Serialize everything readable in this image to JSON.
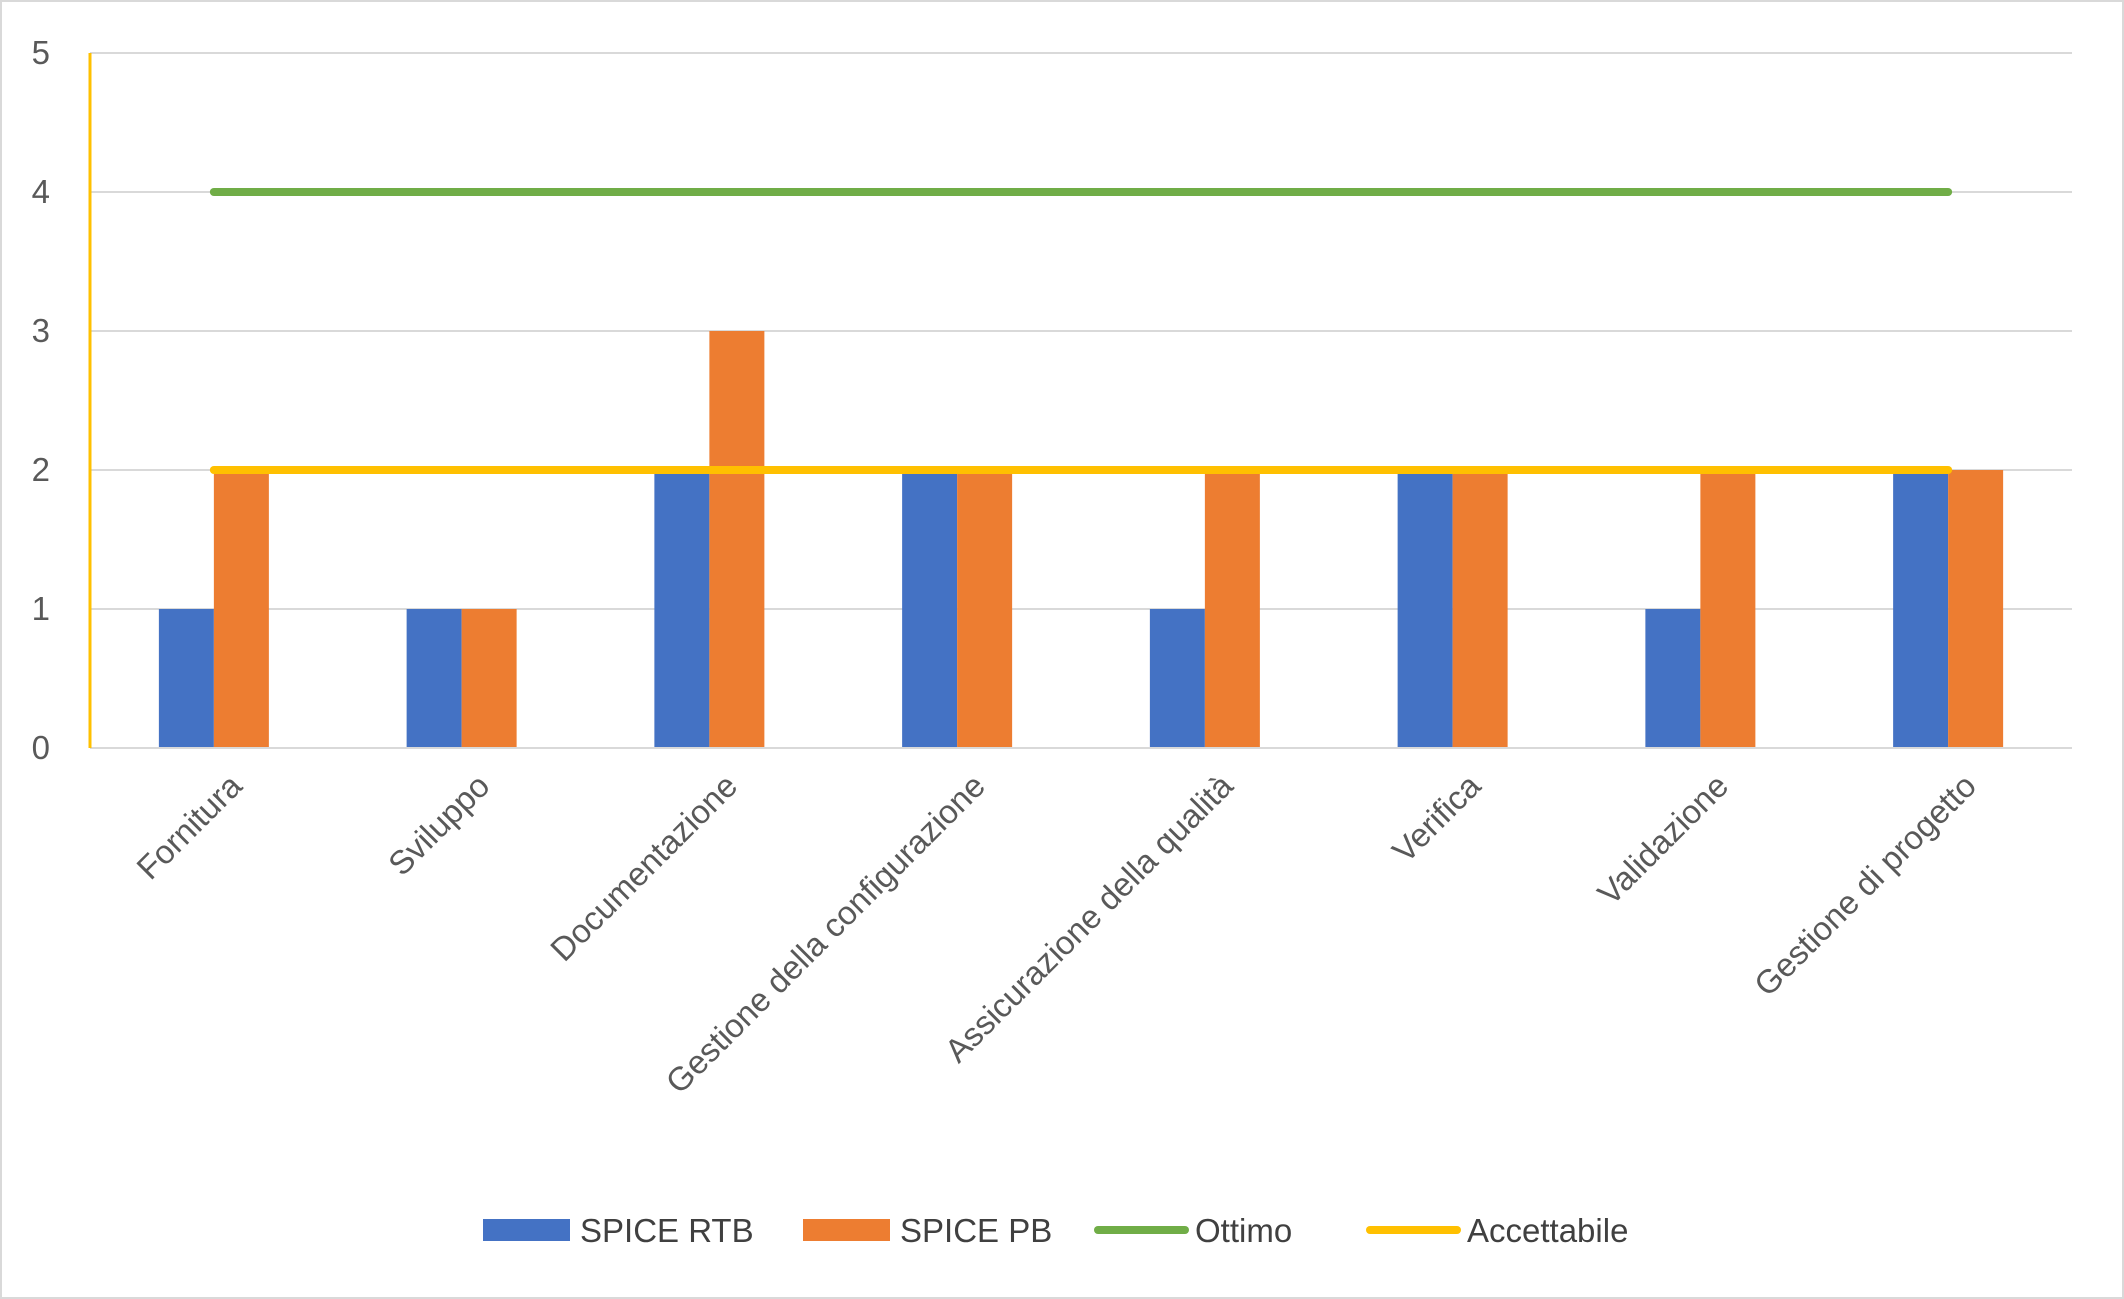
{
  "chart_data": {
    "type": "bar",
    "categories": [
      "Fornitura",
      "Sviluppo",
      "Documentazione",
      "Gestione della configurazione",
      "Assicurazione della qualità",
      "Verifica",
      "Validazione",
      "Gestione di progetto"
    ],
    "series": [
      {
        "name": "SPICE RTB",
        "type": "bar",
        "color": "#4472C4",
        "values": [
          1,
          1,
          2,
          2,
          1,
          2,
          1,
          2
        ]
      },
      {
        "name": "SPICE PB",
        "type": "bar",
        "color": "#ED7D31",
        "values": [
          2,
          1,
          3,
          2,
          2,
          2,
          2,
          2
        ]
      },
      {
        "name": "Ottimo",
        "type": "line",
        "color": "#70AD47",
        "values": [
          4,
          4,
          4,
          4,
          4,
          4,
          4,
          4
        ]
      },
      {
        "name": "Accettabile",
        "type": "line",
        "color": "#FFC000",
        "values": [
          2,
          2,
          2,
          2,
          2,
          2,
          2,
          2
        ]
      }
    ],
    "yticks": [
      "0",
      "1",
      "2",
      "3",
      "4",
      "5"
    ],
    "ylim": [
      0,
      5
    ],
    "grid": true,
    "legend": "bottom"
  }
}
